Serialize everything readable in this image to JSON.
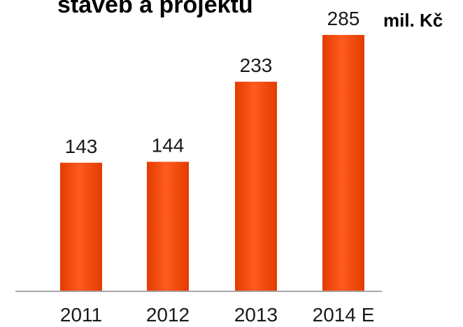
{
  "chart_data": {
    "type": "bar",
    "title": "staveb a projektů",
    "unit_label": "mil. Kč",
    "categories": [
      "2011",
      "2012",
      "2013",
      "2014 E"
    ],
    "values": [
      143,
      144,
      233,
      285
    ],
    "xlabel": "",
    "ylabel": "",
    "ylim": [
      0,
      310
    ],
    "grid": false,
    "legend": "none",
    "colors": {
      "bar_top": "#ff5a1f",
      "bar_mid": "#f7470a",
      "bar_bottom": "#e23c00",
      "axis": "#a6a6a6"
    }
  }
}
